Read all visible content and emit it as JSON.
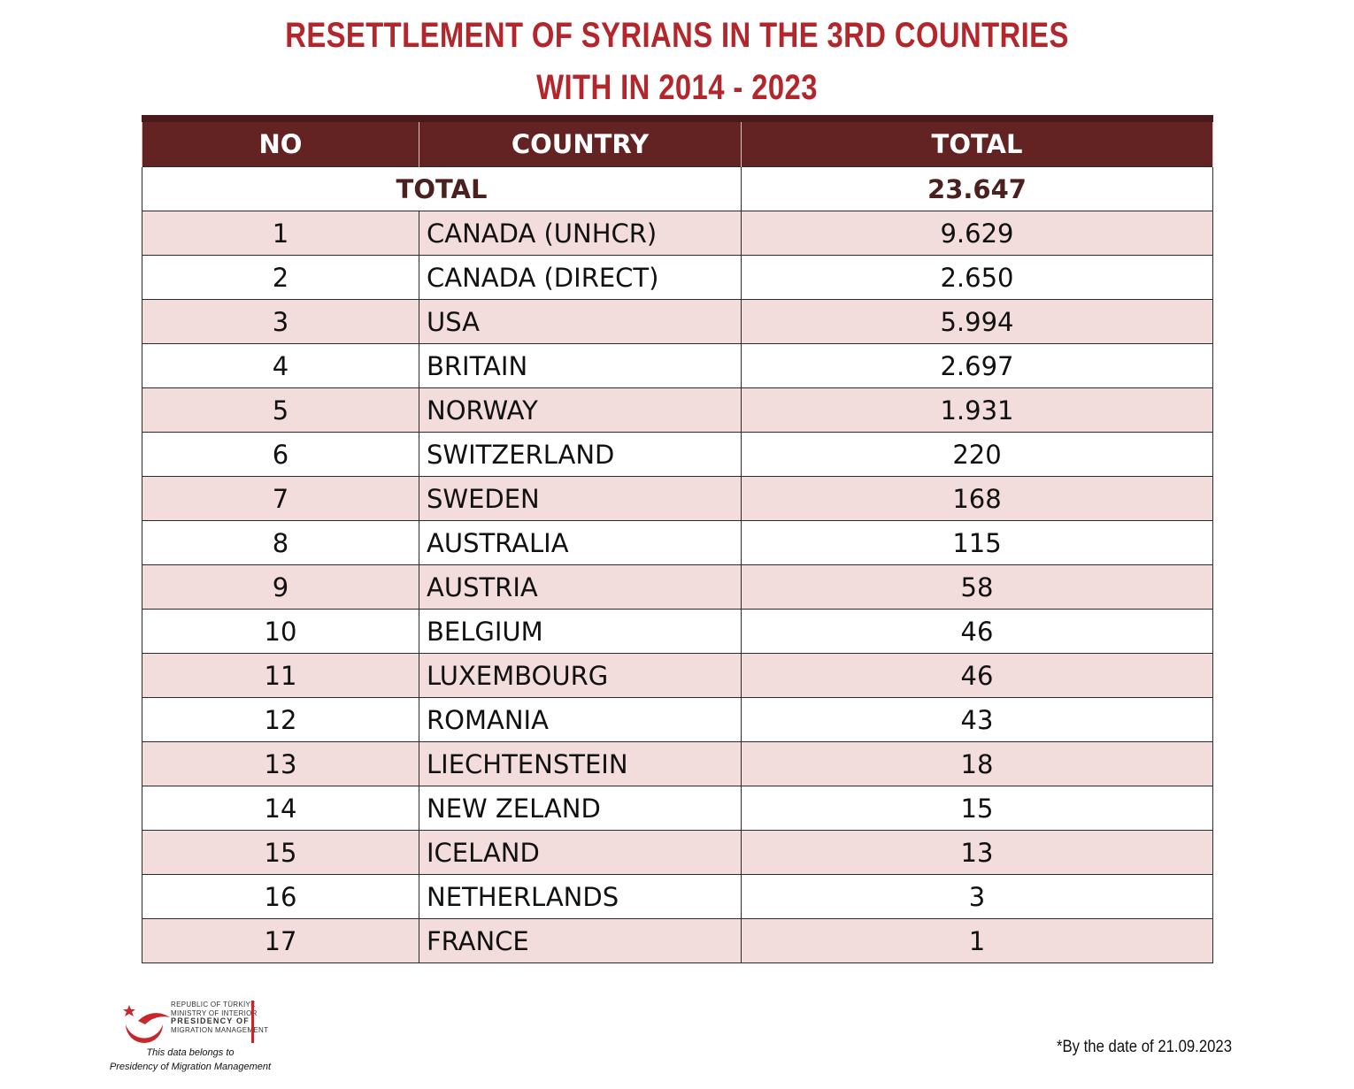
{
  "title": {
    "line1": "RESETTLEMENT OF SYRIANS IN THE 3RD COUNTRIES",
    "line2": "WITH IN 2014 - 2023"
  },
  "table": {
    "headers": {
      "no": "NO",
      "country": "COUNTRY",
      "total": "TOTAL"
    },
    "total_row": {
      "label": "TOTAL",
      "value": "23.647"
    },
    "rows": [
      {
        "no": "1",
        "country": "CANADA (UNHCR)",
        "total": "9.629"
      },
      {
        "no": "2",
        "country": "CANADA (DIRECT)",
        "total": "2.650"
      },
      {
        "no": "3",
        "country": "USA",
        "total": "5.994"
      },
      {
        "no": "4",
        "country": "BRITAIN",
        "total": "2.697"
      },
      {
        "no": "5",
        "country": "NORWAY",
        "total": "1.931"
      },
      {
        "no": "6",
        "country": "SWITZERLAND",
        "total": "220"
      },
      {
        "no": "7",
        "country": "SWEDEN",
        "total": "168"
      },
      {
        "no": "8",
        "country": "AUSTRALIA",
        "total": "115"
      },
      {
        "no": "9",
        "country": "AUSTRIA",
        "total": "58"
      },
      {
        "no": "10",
        "country": "BELGIUM",
        "total": "46"
      },
      {
        "no": "11",
        "country": "LUXEMBOURG",
        "total": "46"
      },
      {
        "no": "12",
        "country": "ROMANIA",
        "total": "43"
      },
      {
        "no": "13",
        "country": "LIECHTENSTEIN",
        "total": "18"
      },
      {
        "no": "14",
        "country": "NEW ZELAND",
        "total": "15"
      },
      {
        "no": "15",
        "country": "ICELAND",
        "total": "13"
      },
      {
        "no": "16",
        "country": "NETHERLANDS",
        "total": "3"
      },
      {
        "no": "17",
        "country": "FRANCE",
        "total": "1"
      }
    ]
  },
  "logo": {
    "line1": "REPUBLIC OF TÜRKİYE",
    "line2": "MINISTRY OF INTERIOR",
    "line3": "PRESIDENCY OF",
    "line4": "MIGRATION MANAGEMENT",
    "accent": "#c8262b"
  },
  "caption": {
    "line1": "This data belongs to",
    "line2": "Presidency of Migration Management"
  },
  "footnote": "*By the date of 21.09.2023",
  "colors": {
    "title": "#b3262b",
    "header_bg": "#632323",
    "row_alt_bg": "#f2dcdc"
  }
}
